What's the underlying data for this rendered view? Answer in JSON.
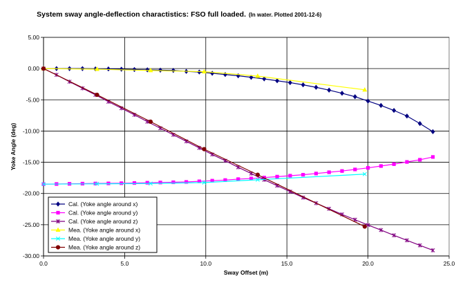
{
  "chart_data": {
    "type": "line",
    "title": "System sway angle-deflection charactistics: FSO full loaded.",
    "subtitle": "(In water. Plotted 2001-12-6)",
    "xlabel": "Sway Offset (m)",
    "ylabel": "Yoke Angle (deg)",
    "xlim": [
      0,
      25
    ],
    "ylim": [
      -30,
      5
    ],
    "xticks": [
      0,
      5,
      10,
      15,
      20,
      25
    ],
    "xtick_labels": [
      "0.0",
      "5.0",
      "10.0",
      "15.0",
      "20.0",
      "25.0"
    ],
    "yticks": [
      5,
      0,
      -5,
      -10,
      -15,
      -20,
      -25,
      -30
    ],
    "ytick_labels": [
      "5.00",
      "0.00",
      "-5.00",
      "-10.00",
      "-15.00",
      "-20.00",
      "-25.00",
      "-30.00"
    ],
    "grid": "horizontal",
    "legend_position": "bottom-left",
    "series": [
      {
        "name": "Cal. (Yoke angle around x)",
        "color": "#000080",
        "marker": "diamond",
        "x": [
          0,
          0.8,
          1.6,
          2.4,
          3.2,
          4.0,
          4.8,
          5.6,
          6.4,
          7.2,
          8.0,
          8.8,
          9.6,
          10.4,
          11.2,
          12.0,
          12.8,
          13.6,
          14.4,
          15.2,
          16.0,
          16.8,
          17.6,
          18.4,
          19.2,
          20.0,
          20.8,
          21.6,
          22.4,
          23.2,
          24.0
        ],
        "y": [
          0.0,
          0.0,
          0.0,
          0.0,
          -0.05,
          -0.05,
          -0.1,
          -0.15,
          -0.2,
          -0.25,
          -0.3,
          -0.45,
          -0.55,
          -0.75,
          -0.95,
          -1.15,
          -1.4,
          -1.65,
          -1.95,
          -2.25,
          -2.6,
          -3.0,
          -3.45,
          -3.95,
          -4.5,
          -5.2,
          -5.9,
          -6.7,
          -7.6,
          -8.8,
          -10.1
        ]
      },
      {
        "name": "Cal. (Yoke angle around y)",
        "color": "#ff00ff",
        "marker": "square",
        "x": [
          0,
          0.8,
          1.6,
          2.4,
          3.2,
          4.0,
          4.8,
          5.6,
          6.4,
          7.2,
          8.0,
          8.8,
          9.6,
          10.4,
          11.2,
          12.0,
          12.8,
          13.6,
          14.4,
          15.2,
          16.0,
          16.8,
          17.6,
          18.4,
          19.2,
          20.0,
          20.8,
          21.6,
          22.4,
          23.2,
          24.0
        ],
        "y": [
          -18.5,
          -18.48,
          -18.45,
          -18.42,
          -18.4,
          -18.38,
          -18.35,
          -18.32,
          -18.28,
          -18.24,
          -18.2,
          -18.15,
          -18.05,
          -17.95,
          -17.85,
          -17.7,
          -17.6,
          -17.45,
          -17.3,
          -17.15,
          -17.0,
          -16.8,
          -16.6,
          -16.4,
          -16.15,
          -15.9,
          -15.6,
          -15.3,
          -14.95,
          -14.6,
          -14.15
        ]
      },
      {
        "name": "Cal. (Yoke angle around z)",
        "color": "#800080",
        "marker": "star",
        "x": [
          0,
          0.8,
          1.6,
          2.4,
          3.2,
          4.0,
          4.8,
          5.6,
          6.4,
          7.2,
          8.0,
          8.8,
          9.6,
          10.4,
          11.2,
          12.0,
          12.8,
          13.6,
          14.4,
          15.2,
          16.0,
          16.8,
          17.6,
          18.4,
          19.2,
          20.0,
          20.8,
          21.6,
          22.4,
          23.2,
          24.0
        ],
        "y": [
          0.0,
          -1.0,
          -2.1,
          -3.15,
          -4.2,
          -5.3,
          -6.35,
          -7.4,
          -8.5,
          -9.55,
          -10.6,
          -11.65,
          -12.7,
          -13.75,
          -14.75,
          -15.8,
          -16.8,
          -17.8,
          -18.75,
          -19.7,
          -20.65,
          -21.55,
          -22.45,
          -23.35,
          -24.2,
          -25.05,
          -25.85,
          -26.7,
          -27.5,
          -28.3,
          -29.1
        ]
      },
      {
        "name": "Mea. (Yoke angle around x)",
        "color": "#ffff00",
        "marker": "triangle",
        "x": [
          0,
          3.3,
          6.6,
          9.9,
          13.2,
          19.8
        ],
        "y": [
          0.0,
          -0.1,
          -0.3,
          -0.5,
          -1.2,
          -3.4
        ]
      },
      {
        "name": "Mea. (Yoke angle around y)",
        "color": "#00ffff",
        "marker": "x",
        "x": [
          0,
          3.3,
          6.6,
          9.9,
          13.2,
          19.8
        ],
        "y": [
          -18.5,
          -18.45,
          -18.4,
          -18.25,
          -17.8,
          -16.9
        ]
      },
      {
        "name": "Mea. (Yoke angle around z)",
        "color": "#800000",
        "marker": "circle",
        "x": [
          0,
          3.3,
          6.6,
          9.9,
          13.2,
          19.8
        ],
        "y": [
          0.0,
          -4.2,
          -8.5,
          -12.9,
          -17.0,
          -25.3
        ]
      }
    ]
  }
}
